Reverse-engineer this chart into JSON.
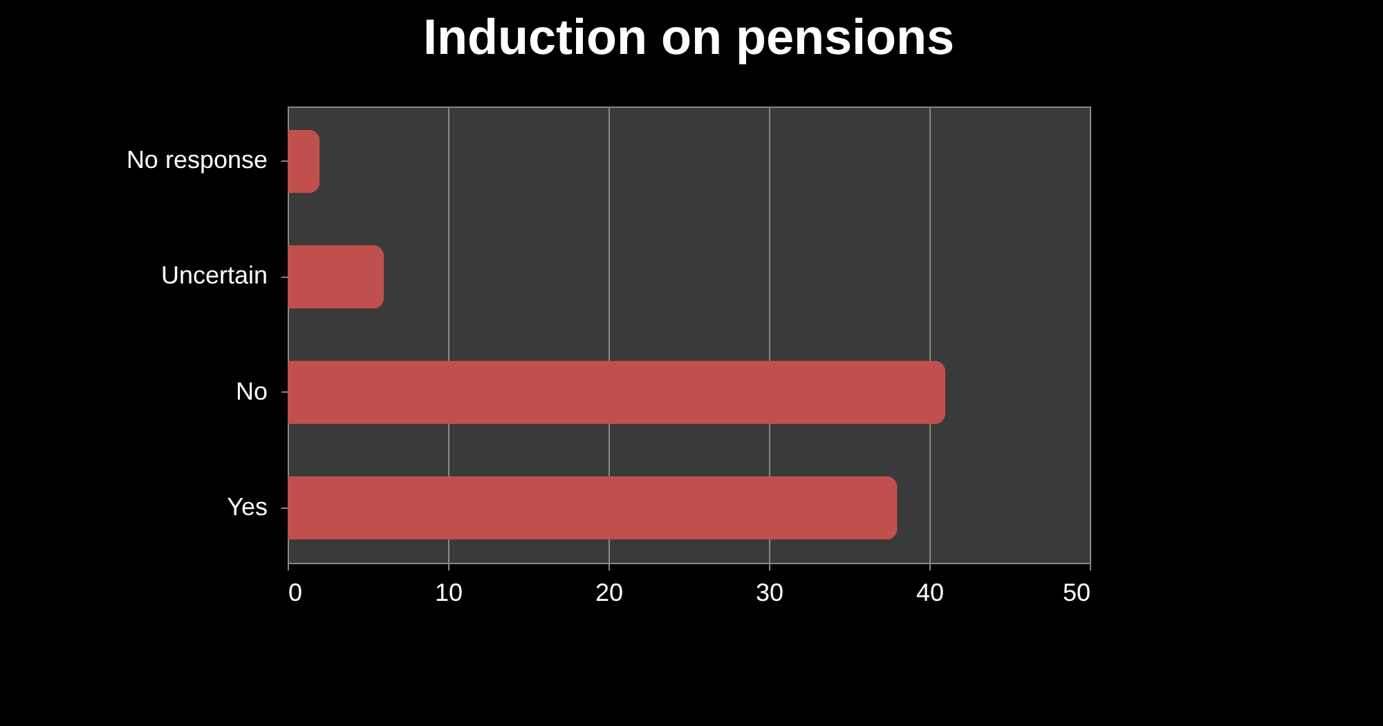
{
  "chart_data": {
    "type": "bar",
    "orientation": "horizontal",
    "title": "Induction on pensions",
    "categories": [
      "No response",
      "Uncertain",
      "No",
      "Yes"
    ],
    "values": [
      2,
      6,
      41,
      38
    ],
    "color": "#c0504d",
    "xlim": [
      0,
      50
    ],
    "xticks": [
      0,
      10,
      20,
      30,
      40,
      50
    ],
    "grid": "x"
  }
}
